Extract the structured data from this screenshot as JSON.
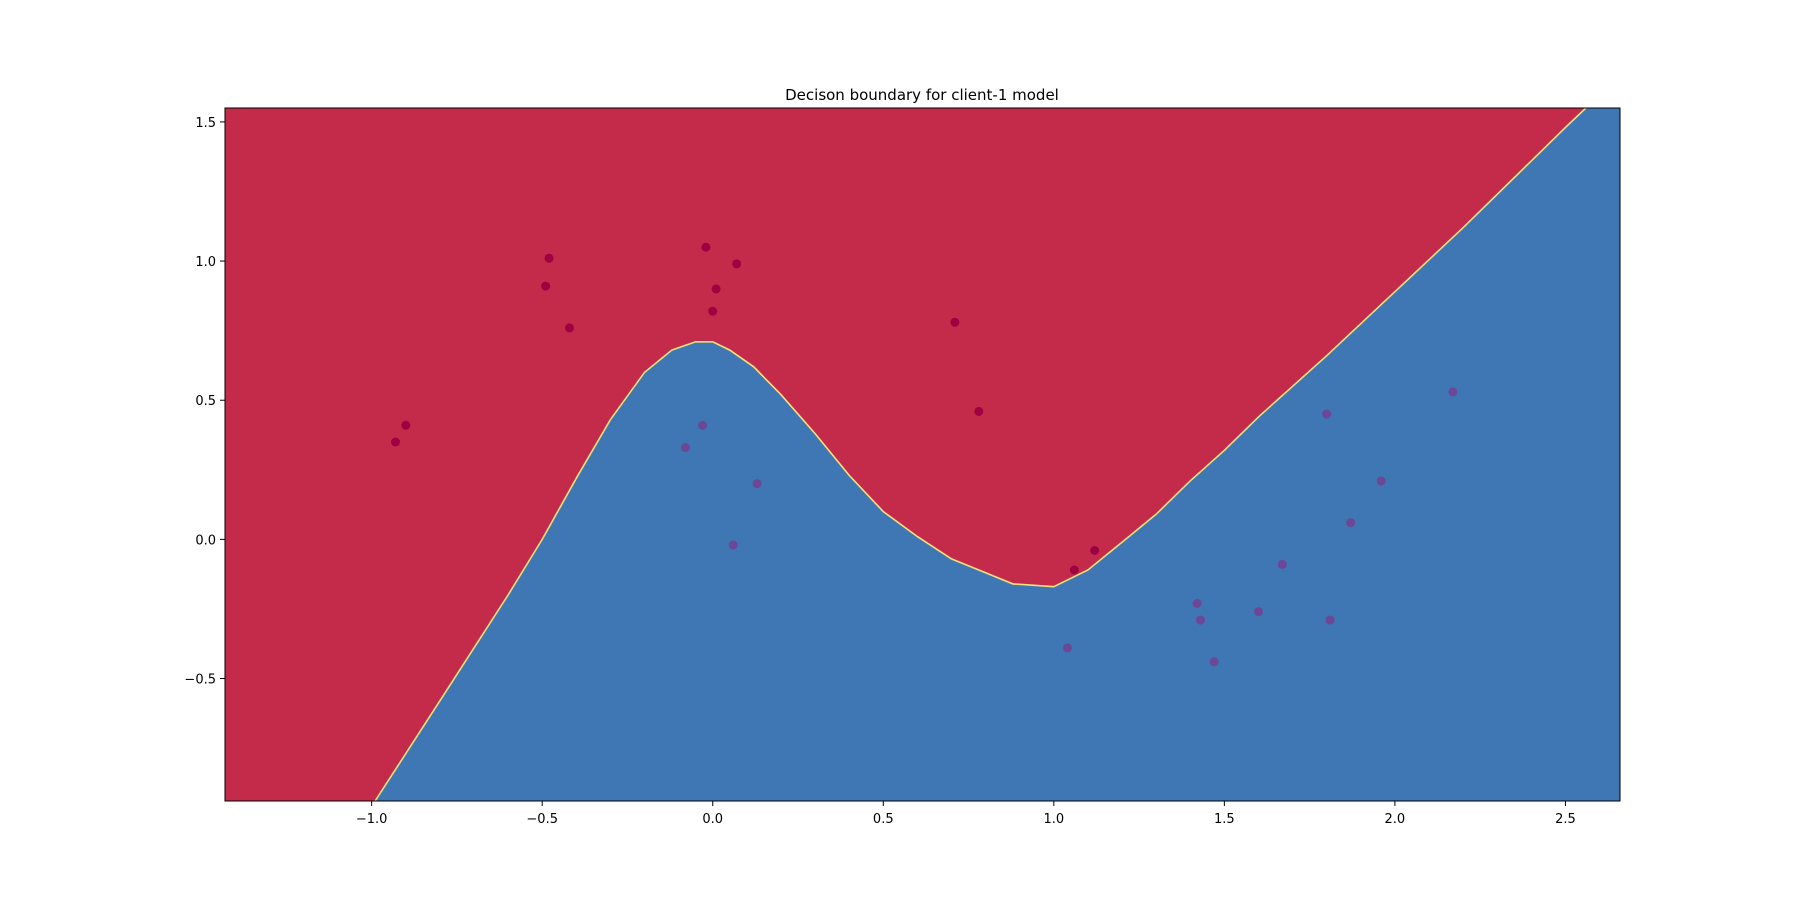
{
  "chart_data": {
    "type": "scatter",
    "title": "Decison boundary for client-1 model",
    "xlabel": "",
    "ylabel": "",
    "xlim": [
      -1.43,
      2.66
    ],
    "ylim": [
      -0.94,
      1.55
    ],
    "xticks": [
      -1.0,
      -0.5,
      0.0,
      0.5,
      1.0,
      1.5,
      2.0,
      2.5
    ],
    "yticks": [
      -0.5,
      0.0,
      0.5,
      1.0,
      1.5
    ],
    "xtick_labels": [
      "−1.0",
      "−0.5",
      "0.0",
      "0.5",
      "1.0",
      "1.5",
      "2.0",
      "2.5"
    ],
    "ytick_labels": [
      "−0.5",
      "0.0",
      "0.5",
      "1.0",
      "1.5"
    ],
    "grid": false,
    "colors": {
      "region_class0": "#c42b4a",
      "region_class1": "#3f76b4",
      "boundary": "#f5e27a",
      "point_class0": "#9e0142",
      "point_class1": "#6c4796"
    },
    "decision_boundary": [
      [
        -0.99,
        -0.94
      ],
      [
        -0.8,
        -0.58
      ],
      [
        -0.6,
        -0.2
      ],
      [
        -0.5,
        0.0
      ],
      [
        -0.4,
        0.22
      ],
      [
        -0.3,
        0.43
      ],
      [
        -0.2,
        0.6
      ],
      [
        -0.12,
        0.68
      ],
      [
        -0.05,
        0.71
      ],
      [
        0.0,
        0.71
      ],
      [
        0.05,
        0.68
      ],
      [
        0.12,
        0.62
      ],
      [
        0.2,
        0.52
      ],
      [
        0.3,
        0.38
      ],
      [
        0.4,
        0.23
      ],
      [
        0.5,
        0.1
      ],
      [
        0.6,
        0.01
      ],
      [
        0.7,
        -0.07
      ],
      [
        0.8,
        -0.12
      ],
      [
        0.88,
        -0.16
      ],
      [
        1.0,
        -0.17
      ],
      [
        1.1,
        -0.11
      ],
      [
        1.2,
        -0.01
      ],
      [
        1.3,
        0.09
      ],
      [
        1.4,
        0.21
      ],
      [
        1.5,
        0.32
      ],
      [
        1.6,
        0.44
      ],
      [
        1.8,
        0.66
      ],
      [
        2.0,
        0.89
      ],
      [
        2.2,
        1.12
      ],
      [
        2.4,
        1.36
      ],
      [
        2.5,
        1.48
      ],
      [
        2.56,
        1.55
      ]
    ],
    "series": [
      {
        "points": [
          [
            -0.93,
            0.35
          ],
          [
            -0.9,
            0.41
          ],
          [
            -0.49,
            0.91
          ],
          [
            -0.48,
            1.01
          ],
          [
            -0.42,
            0.76
          ],
          [
            -0.02,
            1.05
          ],
          [
            0.0,
            0.82
          ],
          [
            0.01,
            0.9
          ],
          [
            0.07,
            0.99
          ],
          [
            0.71,
            0.78
          ],
          [
            0.78,
            0.46
          ],
          [
            1.06,
            -0.11
          ],
          [
            1.12,
            -0.04
          ]
        ]
      },
      {
        "points": [
          [
            -0.08,
            0.33
          ],
          [
            -0.03,
            0.41
          ],
          [
            0.06,
            -0.02
          ],
          [
            0.13,
            0.2
          ],
          [
            1.04,
            -0.39
          ],
          [
            1.42,
            -0.23
          ],
          [
            1.43,
            -0.29
          ],
          [
            1.47,
            -0.44
          ],
          [
            1.6,
            -0.26
          ],
          [
            1.67,
            -0.09
          ],
          [
            1.8,
            0.45
          ],
          [
            1.81,
            -0.29
          ],
          [
            1.87,
            0.06
          ],
          [
            1.96,
            0.21
          ],
          [
            2.17,
            0.53
          ]
        ]
      }
    ]
  }
}
